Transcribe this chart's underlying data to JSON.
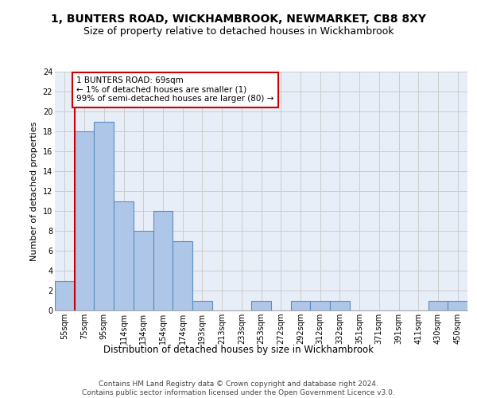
{
  "title1": "1, BUNTERS ROAD, WICKHAMBROOK, NEWMARKET, CB8 8XY",
  "title2": "Size of property relative to detached houses in Wickhambrook",
  "xlabel": "Distribution of detached houses by size in Wickhambrook",
  "ylabel": "Number of detached properties",
  "categories": [
    "55sqm",
    "75sqm",
    "95sqm",
    "114sqm",
    "134sqm",
    "154sqm",
    "174sqm",
    "193sqm",
    "213sqm",
    "233sqm",
    "253sqm",
    "272sqm",
    "292sqm",
    "312sqm",
    "332sqm",
    "351sqm",
    "371sqm",
    "391sqm",
    "411sqm",
    "430sqm",
    "450sqm"
  ],
  "values": [
    3,
    18,
    19,
    11,
    8,
    10,
    7,
    1,
    0,
    0,
    1,
    0,
    1,
    1,
    1,
    0,
    0,
    0,
    0,
    1,
    1
  ],
  "bar_color": "#aec6e8",
  "bar_edge_color": "#5a8fc0",
  "highlight_color": "#cc0000",
  "annotation_box_text": "1 BUNTERS ROAD: 69sqm\n← 1% of detached houses are smaller (1)\n99% of semi-detached houses are larger (80) →",
  "annotation_box_color": "#cc0000",
  "ylim": [
    0,
    24
  ],
  "yticks": [
    0,
    2,
    4,
    6,
    8,
    10,
    12,
    14,
    16,
    18,
    20,
    22,
    24
  ],
  "grid_color": "#cccccc",
  "background_color": "#e8eef8",
  "footer_text": "Contains HM Land Registry data © Crown copyright and database right 2024.\nContains public sector information licensed under the Open Government Licence v3.0.",
  "title1_fontsize": 10,
  "title2_fontsize": 9,
  "xlabel_fontsize": 8.5,
  "ylabel_fontsize": 8,
  "tick_fontsize": 7,
  "annotation_fontsize": 7.5,
  "footer_fontsize": 6.5
}
